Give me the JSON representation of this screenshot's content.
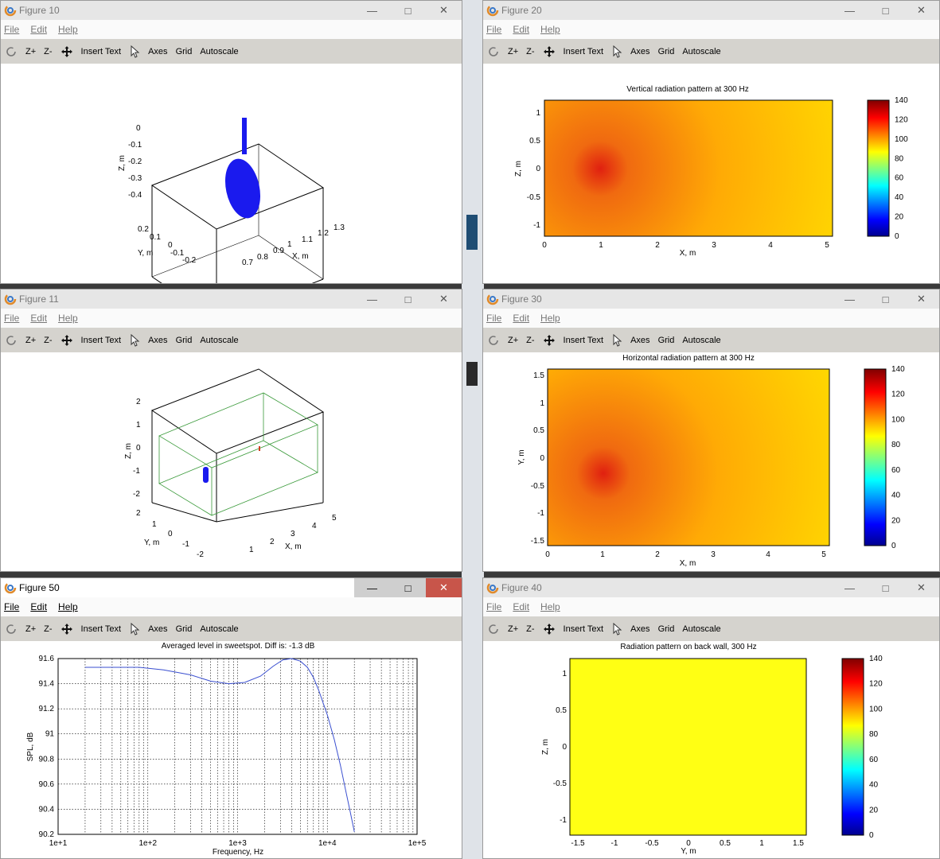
{
  "menu": {
    "file": "File",
    "edit": "Edit",
    "help": "Help"
  },
  "toolbar": {
    "zoom_in": "Z+",
    "zoom_out": "Z-",
    "insert_text": "Insert Text",
    "axes": "Axes",
    "grid": "Grid",
    "autoscale": "Autoscale"
  },
  "windows": {
    "fig10": {
      "title": "Figure 10",
      "zlabel": "Z, m",
      "ylabel": "Y, m",
      "xlabel": "X, m",
      "zticks": [
        "0",
        "-0.1",
        "-0.2",
        "-0.3",
        "-0.4"
      ],
      "yticks": [
        "0.2",
        "0.1",
        "0",
        "-0.1",
        "-0.2"
      ],
      "xticks": [
        "0.7",
        "0.8",
        "0.9",
        "1",
        "1.1",
        "1.2",
        "1.3"
      ]
    },
    "fig11": {
      "title": "Figure 11",
      "zlabel": "Z, m",
      "ylabel": "Y, m",
      "xlabel": "X, m",
      "zticks": [
        "2",
        "1",
        "0",
        "-1",
        "-2"
      ],
      "yticks": [
        "2",
        "1",
        "0",
        "-1",
        "-2"
      ],
      "xticks": [
        "1",
        "2",
        "3",
        "4",
        "5"
      ]
    },
    "fig20": {
      "title": "Figure 20",
      "plot_title": "Vertical radiation pattern at 300 Hz",
      "xlabel": "X, m",
      "ylabel": "Z, m",
      "xticks": [
        "0",
        "1",
        "2",
        "3",
        "4",
        "5"
      ],
      "yticks": [
        "1",
        "0.5",
        "0",
        "-0.5",
        "-1"
      ],
      "cbticks": [
        "140",
        "120",
        "100",
        "80",
        "60",
        "40",
        "20",
        "0"
      ]
    },
    "fig30": {
      "title": "Figure 30",
      "plot_title": "Horizontal radiation pattern at 300 Hz",
      "xlabel": "X, m",
      "ylabel": "Y, m",
      "xticks": [
        "0",
        "1",
        "2",
        "3",
        "4",
        "5"
      ],
      "yticks": [
        "1.5",
        "1",
        "0.5",
        "0",
        "-0.5",
        "-1",
        "-1.5"
      ],
      "cbticks": [
        "140",
        "120",
        "100",
        "80",
        "60",
        "40",
        "20",
        "0"
      ]
    },
    "fig40": {
      "title": "Figure 40",
      "plot_title": "Radiation pattern on back wall, 300 Hz",
      "xlabel": "Y, m",
      "ylabel": "Z, m",
      "xticks": [
        "-1.5",
        "-1",
        "-0.5",
        "0",
        "0.5",
        "1",
        "1.5"
      ],
      "yticks": [
        "1",
        "0.5",
        "0",
        "-0.5",
        "-1"
      ],
      "cbticks": [
        "140",
        "120",
        "100",
        "80",
        "60",
        "40",
        "20",
        "0"
      ]
    },
    "fig50": {
      "title": "Figure 50"
    }
  },
  "chart_data": [
    {
      "type": "line",
      "title": "Averaged level in sweetspot. Diff is: -1.3 dB",
      "xlabel": "Frequency, Hz",
      "ylabel": "SPL, dB",
      "xscale": "log",
      "xlim": [
        10,
        100000
      ],
      "ylim": [
        90.2,
        91.6
      ],
      "grid": true,
      "xticks": [
        "1e+1",
        "1e+2",
        "1e+3",
        "1e+4",
        "1e+5"
      ],
      "yticks": [
        "91.6",
        "91.4",
        "91.2",
        "91",
        "90.8",
        "90.6",
        "90.4",
        "90.2"
      ],
      "series": [
        {
          "color": "#3a4fd0",
          "x": [
            20,
            40,
            80,
            150,
            300,
            500,
            800,
            1200,
            1800,
            2500,
            3200,
            4000,
            5000,
            6000,
            7000,
            8000,
            10000,
            12000,
            14000,
            16000,
            18000,
            20000
          ],
          "y": [
            91.53,
            91.53,
            91.53,
            91.51,
            91.47,
            91.42,
            91.4,
            91.41,
            91.46,
            91.54,
            91.59,
            91.6,
            91.58,
            91.53,
            91.45,
            91.35,
            91.15,
            90.95,
            90.75,
            90.55,
            90.38,
            90.22
          ]
        }
      ]
    },
    {
      "type": "heatmap",
      "title": "Vertical radiation pattern at 300 Hz",
      "xlabel": "X, m",
      "ylabel": "Z, m",
      "xlim": [
        0,
        5
      ],
      "ylim": [
        -1.2,
        1.2
      ],
      "clim": [
        0,
        140
      ],
      "source": [
        1,
        0
      ]
    },
    {
      "type": "heatmap",
      "title": "Horizontal radiation pattern at 300 Hz",
      "xlabel": "X, m",
      "ylabel": "Y, m",
      "xlim": [
        0,
        5
      ],
      "ylim": [
        -1.6,
        1.6
      ],
      "clim": [
        0,
        140
      ],
      "source": [
        1,
        0
      ]
    },
    {
      "type": "heatmap",
      "title": "Radiation pattern on back wall, 300 Hz",
      "xlabel": "Y, m",
      "ylabel": "Z, m",
      "xlim": [
        -1.6,
        1.6
      ],
      "ylim": [
        -1.2,
        1.2
      ],
      "clim": [
        0,
        140
      ],
      "uniform_level": 88
    }
  ],
  "colors": {
    "toolbar_bg": "#d5d3ce",
    "close_active": "#c8554a",
    "series_blue": "#3a4fd0",
    "solid_blue": "#1a1aee",
    "room_green": "#3a9a3a"
  }
}
